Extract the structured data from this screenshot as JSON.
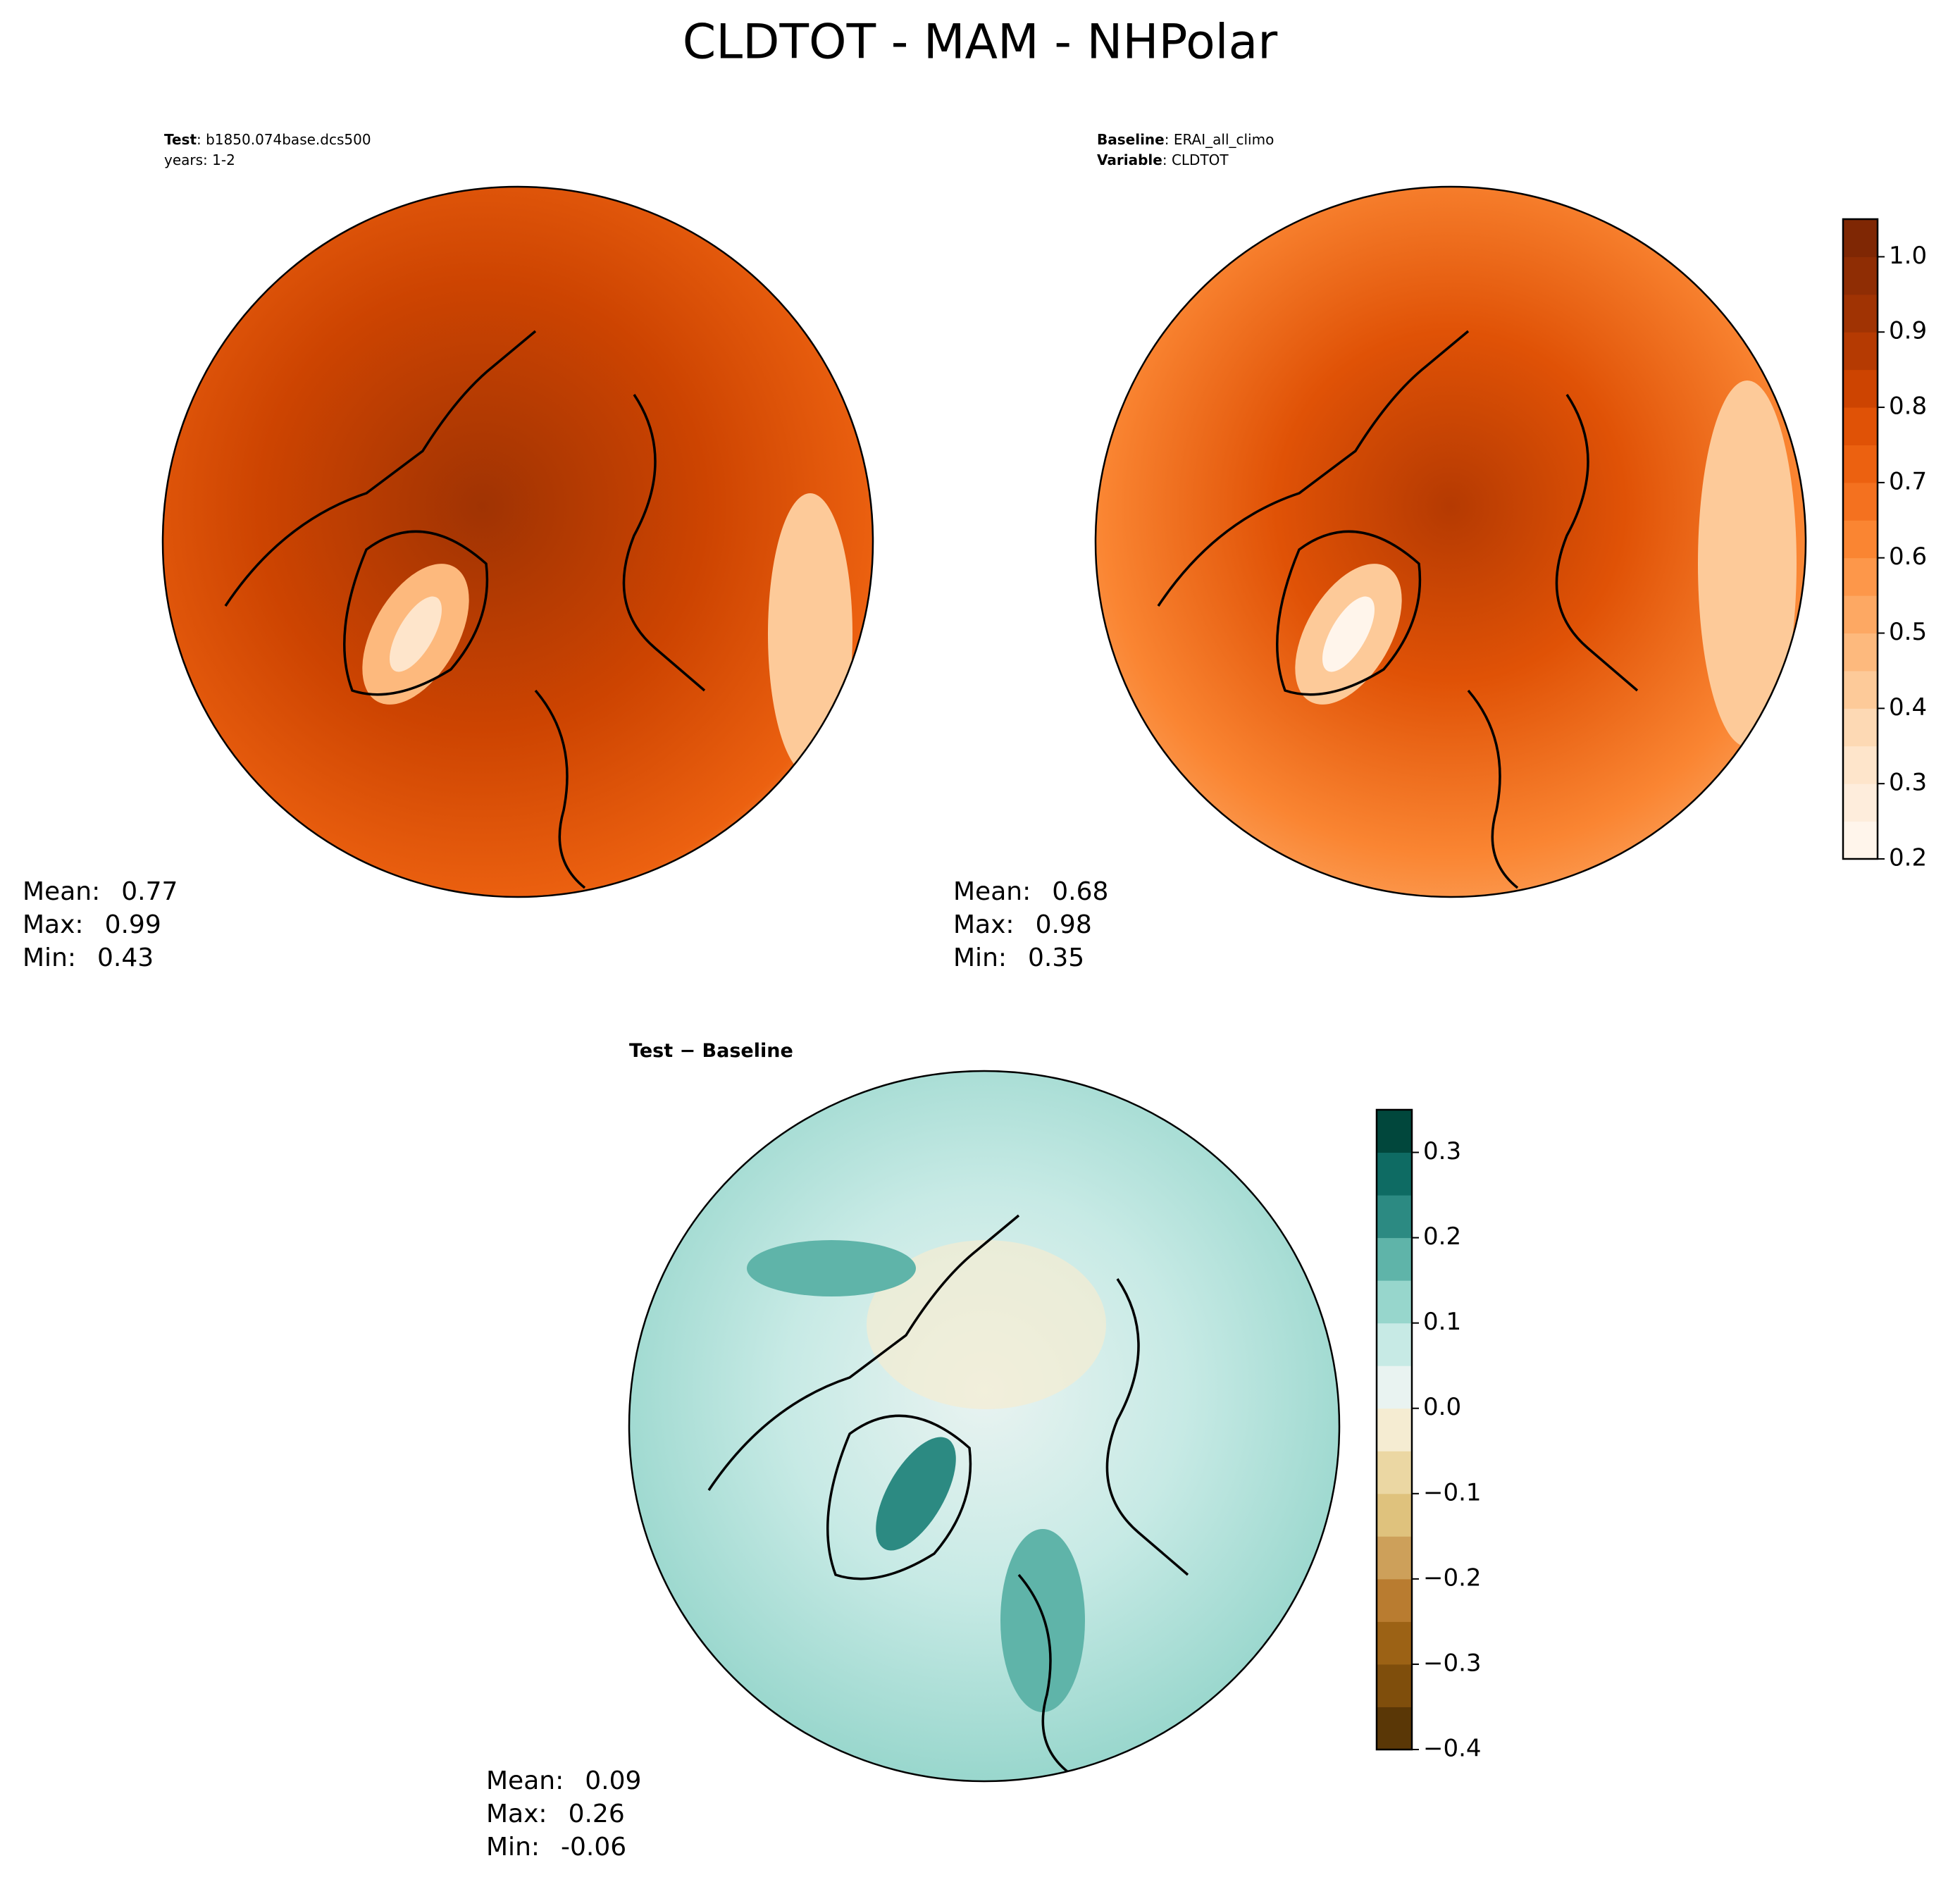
{
  "title": "CLDTOT - MAM - NHPolar",
  "panels": [
    {
      "header": [
        {
          "key": "Test",
          "text": ": b1850.074base.dcs500"
        },
        {
          "text": "years: 1-2"
        }
      ],
      "stats": [
        {
          "label": "Mean:",
          "value": 0.77
        },
        {
          "label": "Max:",
          "value": 0.99
        },
        {
          "label": "Min:",
          "value": 0.43
        }
      ]
    },
    {
      "header": [
        {
          "key": "Baseline",
          "text": ": ERAI_all_climo"
        },
        {
          "key": "Variable",
          "text": ": CLDTOT"
        }
      ],
      "stats": [
        {
          "label": "Mean:",
          "value": 0.68
        },
        {
          "label": "Max:",
          "value": 0.98
        },
        {
          "label": "Min:",
          "value": 0.35
        }
      ]
    },
    {
      "header": [
        {
          "key": "Test − Baseline"
        }
      ],
      "stats": [
        {
          "label": "Mean:",
          "value": 0.09
        },
        {
          "label": "Max:",
          "value": 0.26
        },
        {
          "label": "Min:",
          "value": -0.06
        }
      ]
    }
  ],
  "colorbars": [
    {
      "lim": [
        0.2,
        1.05
      ],
      "ticks": [
        0.2,
        0.3,
        0.4,
        0.5,
        0.6,
        0.7,
        0.8,
        0.9,
        {
          "value": 1,
          "label": "1.0"
        }
      ],
      "colors": [
        "#fff5eb",
        "#feeddc",
        "#fee5cb",
        "#fdd9b4",
        "#fdca99",
        "#fdb97d",
        "#fda863",
        "#fd974a",
        "#fa8532",
        "#f4711f",
        "#ec6110",
        "#e05206",
        "#cd4401",
        "#b53a02",
        "#a03303",
        "#8f2d04",
        "#7f2704"
      ]
    },
    {
      "lim": [
        -0.4,
        0.35
      ],
      "ticks": [
        {
          "value": -0.4,
          "label": "−0.4"
        },
        {
          "value": -0.3,
          "label": "−0.3"
        },
        {
          "value": -0.2,
          "label": "−0.2"
        },
        {
          "value": -0.1,
          "label": "−0.1"
        },
        {
          "value": 0,
          "label": "0.0"
        },
        0.1,
        0.2,
        0.3
      ],
      "colors": [
        "#5a3706",
        "#7f4e0c",
        "#9c6215",
        "#b97c30",
        "#cda05a",
        "#dfc27d",
        "#ebd7a3",
        "#f5ecd2",
        "#e9f3f1",
        "#c7eae5",
        "#97d6cc",
        "#5fb4a9",
        "#2c8a82",
        "#0e6b63",
        "#01473c"
      ]
    }
  ]
}
